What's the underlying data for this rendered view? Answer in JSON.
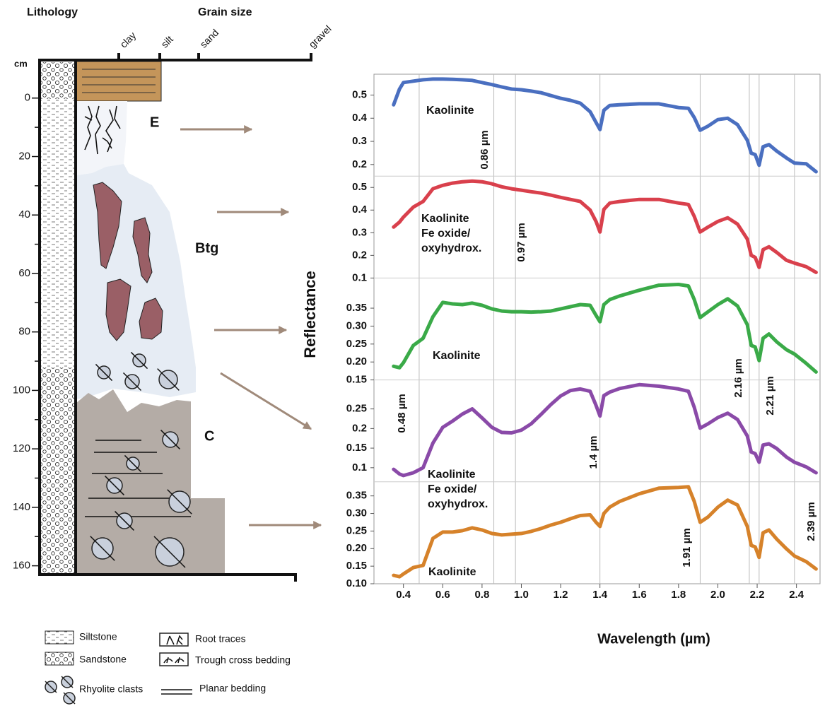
{
  "lithology": {
    "title": "Lithology",
    "grain_size_title": "Grain size",
    "unit": "cm",
    "grain_sizes": [
      "clay",
      "silt",
      "sand",
      "gravel"
    ],
    "depth_lim": [
      -13,
      163
    ],
    "depth_ticks": [
      0,
      20,
      40,
      60,
      80,
      100,
      120,
      140,
      160
    ],
    "depth_minor_ticks": [
      10,
      30,
      50,
      70,
      90,
      110,
      130,
      150
    ],
    "horizons": [
      "E",
      "Btg",
      "C"
    ],
    "legend": [
      "Siltstone",
      "Sandstone",
      "Root traces",
      "Trough cross bedding",
      "Rhyolite clasts",
      "Planar bedding"
    ]
  },
  "chart_data": {
    "type": "line",
    "xlabel": "Wavelength (µm)",
    "ylabel": "Reflectance",
    "xlim": [
      0.25,
      2.52
    ],
    "xticks": [
      0.4,
      0.6,
      0.8,
      {
        "value": 1,
        "label": "1.0"
      },
      1.2,
      1.4,
      1.6,
      1.8,
      {
        "value": 2,
        "label": "2.0"
      },
      2.2,
      2.4
    ],
    "markers": [
      {
        "value": 0.48,
        "label": "0.48 µm"
      },
      {
        "value": 0.86,
        "label": "0.86 µm"
      },
      {
        "value": 0.97,
        "label": "0.97 µm"
      },
      {
        "value": 1.4,
        "label": "1.4 µm"
      },
      {
        "value": 1.91,
        "label": "1.91 µm"
      },
      {
        "value": 2.16,
        "label": "2.16 µm"
      },
      {
        "value": 2.21,
        "label": "2.21 µm"
      },
      {
        "value": 2.39,
        "label": "2.39 µm"
      }
    ],
    "x": [
      0.35,
      0.38,
      0.4,
      0.45,
      0.5,
      0.55,
      0.6,
      0.65,
      0.7,
      0.75,
      0.8,
      0.85,
      0.9,
      0.95,
      1.0,
      1.05,
      1.1,
      1.15,
      1.2,
      1.25,
      1.3,
      1.35,
      1.38,
      1.4,
      1.42,
      1.45,
      1.5,
      1.6,
      1.7,
      1.8,
      1.85,
      1.88,
      1.91,
      1.95,
      2.0,
      2.05,
      2.1,
      2.15,
      2.17,
      2.19,
      2.21,
      2.23,
      2.26,
      2.3,
      2.35,
      2.39,
      2.45,
      2.5
    ],
    "panels": [
      {
        "color": "#4a6fc0",
        "ylim": [
          0.15,
          0.59
        ],
        "yticks": [
          0.2,
          0.3,
          0.4,
          0.5
        ],
        "annotation": [
          "Kaolinite"
        ],
        "values": [
          0.458,
          0.526,
          0.554,
          0.56,
          0.566,
          0.569,
          0.569,
          0.568,
          0.566,
          0.563,
          0.554,
          0.545,
          0.535,
          0.526,
          0.523,
          0.517,
          0.51,
          0.498,
          0.486,
          0.477,
          0.465,
          0.428,
          0.382,
          0.351,
          0.434,
          0.455,
          0.458,
          0.462,
          0.462,
          0.446,
          0.443,
          0.403,
          0.348,
          0.366,
          0.394,
          0.4,
          0.372,
          0.305,
          0.249,
          0.243,
          0.197,
          0.277,
          0.286,
          0.258,
          0.228,
          0.206,
          0.203,
          0.169
        ]
      },
      {
        "color": "#d9404c",
        "ylim": [
          0.1,
          0.55
        ],
        "yticks": [
          0.1,
          0.2,
          0.3,
          0.4,
          0.5
        ],
        "annotation": [
          "Kaolinite",
          "Fe oxide/",
          "oxyhydrox."
        ],
        "values": [
          0.325,
          0.347,
          0.369,
          0.413,
          0.438,
          0.494,
          0.509,
          0.519,
          0.525,
          0.528,
          0.525,
          0.516,
          0.503,
          0.494,
          0.488,
          0.481,
          0.475,
          0.466,
          0.456,
          0.447,
          0.438,
          0.4,
          0.35,
          0.303,
          0.403,
          0.431,
          0.438,
          0.447,
          0.447,
          0.431,
          0.425,
          0.372,
          0.303,
          0.325,
          0.35,
          0.366,
          0.338,
          0.272,
          0.2,
          0.191,
          0.147,
          0.225,
          0.238,
          0.213,
          0.178,
          0.166,
          0.15,
          0.125
        ]
      },
      {
        "color": "#3aaa48",
        "ylim": [
          0.15,
          0.434
        ],
        "yticks": [
          0.15,
          {
            "value": 0.2,
            "label": "0.20"
          },
          0.25,
          {
            "value": 0.3,
            "label": "0.30"
          },
          0.35
        ],
        "annotation": [
          "Kaolinite"
        ],
        "values": [
          0.188,
          0.184,
          0.198,
          0.246,
          0.266,
          0.326,
          0.366,
          0.362,
          0.36,
          0.364,
          0.358,
          0.348,
          0.342,
          0.34,
          0.34,
          0.339,
          0.34,
          0.342,
          0.348,
          0.354,
          0.36,
          0.358,
          0.33,
          0.312,
          0.36,
          0.374,
          0.384,
          0.4,
          0.414,
          0.416,
          0.412,
          0.374,
          0.324,
          0.34,
          0.36,
          0.376,
          0.356,
          0.304,
          0.246,
          0.242,
          0.204,
          0.266,
          0.278,
          0.256,
          0.234,
          0.222,
          0.196,
          0.172
        ]
      },
      {
        "color": "#8a4aa8",
        "ylim": [
          0.064,
          0.324
        ],
        "yticks": [
          0.1,
          0.15,
          0.2,
          0.25
        ],
        "annotation": [
          "Kaolinite",
          "Fe oxide/",
          "oxyhydrox."
        ],
        "values": [
          0.096,
          0.084,
          0.08,
          0.087,
          0.1,
          0.163,
          0.203,
          0.219,
          0.237,
          0.25,
          0.227,
          0.203,
          0.19,
          0.189,
          0.196,
          0.212,
          0.236,
          0.261,
          0.283,
          0.297,
          0.301,
          0.295,
          0.259,
          0.232,
          0.284,
          0.293,
          0.302,
          0.312,
          0.308,
          0.301,
          0.295,
          0.254,
          0.201,
          0.212,
          0.228,
          0.239,
          0.223,
          0.181,
          0.14,
          0.136,
          0.114,
          0.158,
          0.161,
          0.149,
          0.127,
          0.114,
          0.102,
          0.087
        ]
      },
      {
        "color": "#d6822a",
        "ylim": [
          0.1,
          0.39
        ],
        "yticks": [
          {
            "value": 0.1,
            "label": "0.10"
          },
          0.15,
          {
            "value": 0.2,
            "label": "0.20"
          },
          0.25,
          {
            "value": 0.3,
            "label": "0.30"
          },
          0.35
        ],
        "annotation": [
          "Kaolinite"
        ],
        "values": [
          0.124,
          0.12,
          0.128,
          0.146,
          0.152,
          0.229,
          0.247,
          0.247,
          0.251,
          0.259,
          0.253,
          0.243,
          0.239,
          0.241,
          0.243,
          0.249,
          0.257,
          0.267,
          0.275,
          0.285,
          0.294,
          0.296,
          0.275,
          0.263,
          0.3,
          0.318,
          0.334,
          0.356,
          0.372,
          0.374,
          0.376,
          0.334,
          0.275,
          0.29,
          0.318,
          0.338,
          0.324,
          0.263,
          0.209,
          0.205,
          0.175,
          0.245,
          0.253,
          0.227,
          0.199,
          0.179,
          0.163,
          0.142
        ]
      }
    ]
  }
}
